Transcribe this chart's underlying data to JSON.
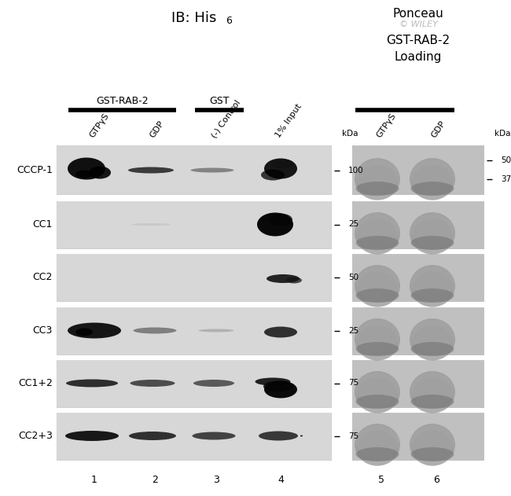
{
  "bg_color": "#ffffff",
  "title_left": "IB: His",
  "title_left_sub": "6",
  "title_right1": "Ponceau",
  "title_right2": "GST-RAB-2",
  "title_right3": "Loading",
  "wiley": "© WILEY",
  "bracket1_label": "GST-RAB-2",
  "bracket2_label": "GST",
  "bracket_right_label": "GST-RAB-2",
  "col_labels_left": [
    "GTPγS",
    "GDP",
    "(-) Control",
    "1% Input"
  ],
  "col_labels_right": [
    "GTPγS",
    "GDP"
  ],
  "row_labels": [
    "CCCP-1",
    "CC1",
    "CC2",
    "CC3",
    "CC1+2",
    "CC2+3"
  ],
  "lane_nums_left": [
    "1",
    "2",
    "3",
    "4"
  ],
  "lane_nums_right": [
    "5",
    "6"
  ],
  "kda_left_labels": [
    "100",
    "25",
    "50",
    "25",
    "75",
    "75"
  ],
  "kda_right_labels": [
    "50",
    "37"
  ],
  "panel_gray_light": "#d8d8d8",
  "panel_gray_right": "#c8c8c8",
  "sep_color": "#ffffff"
}
